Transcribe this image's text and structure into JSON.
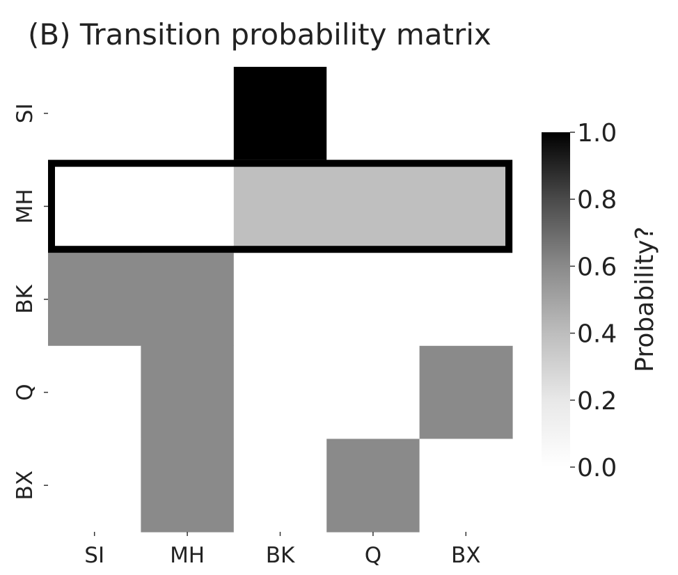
{
  "chart_data": {
    "type": "heatmap",
    "title": "(B) Transition probability matrix",
    "rows": [
      "SI",
      "MH",
      "BK",
      "Q",
      "BX"
    ],
    "columns": [
      "SI",
      "MH",
      "BK",
      "Q",
      "BX"
    ],
    "values": [
      [
        0,
        0,
        1.0,
        0,
        0
      ],
      [
        0,
        0,
        0.25,
        0.25,
        0.25
      ],
      [
        0.5,
        0.5,
        0,
        0,
        0
      ],
      [
        0,
        0.5,
        0,
        0,
        0.5
      ],
      [
        0,
        0.5,
        0,
        0.5,
        0
      ]
    ],
    "highlighted_row": "MH",
    "colorbar": {
      "label": "Probability?",
      "range": [
        0.0,
        1.0
      ],
      "ticks": [
        "0.0",
        "0.2",
        "0.4",
        "0.6",
        "0.8",
        "1.0"
      ],
      "colormap": "Greys"
    },
    "grid": false
  }
}
